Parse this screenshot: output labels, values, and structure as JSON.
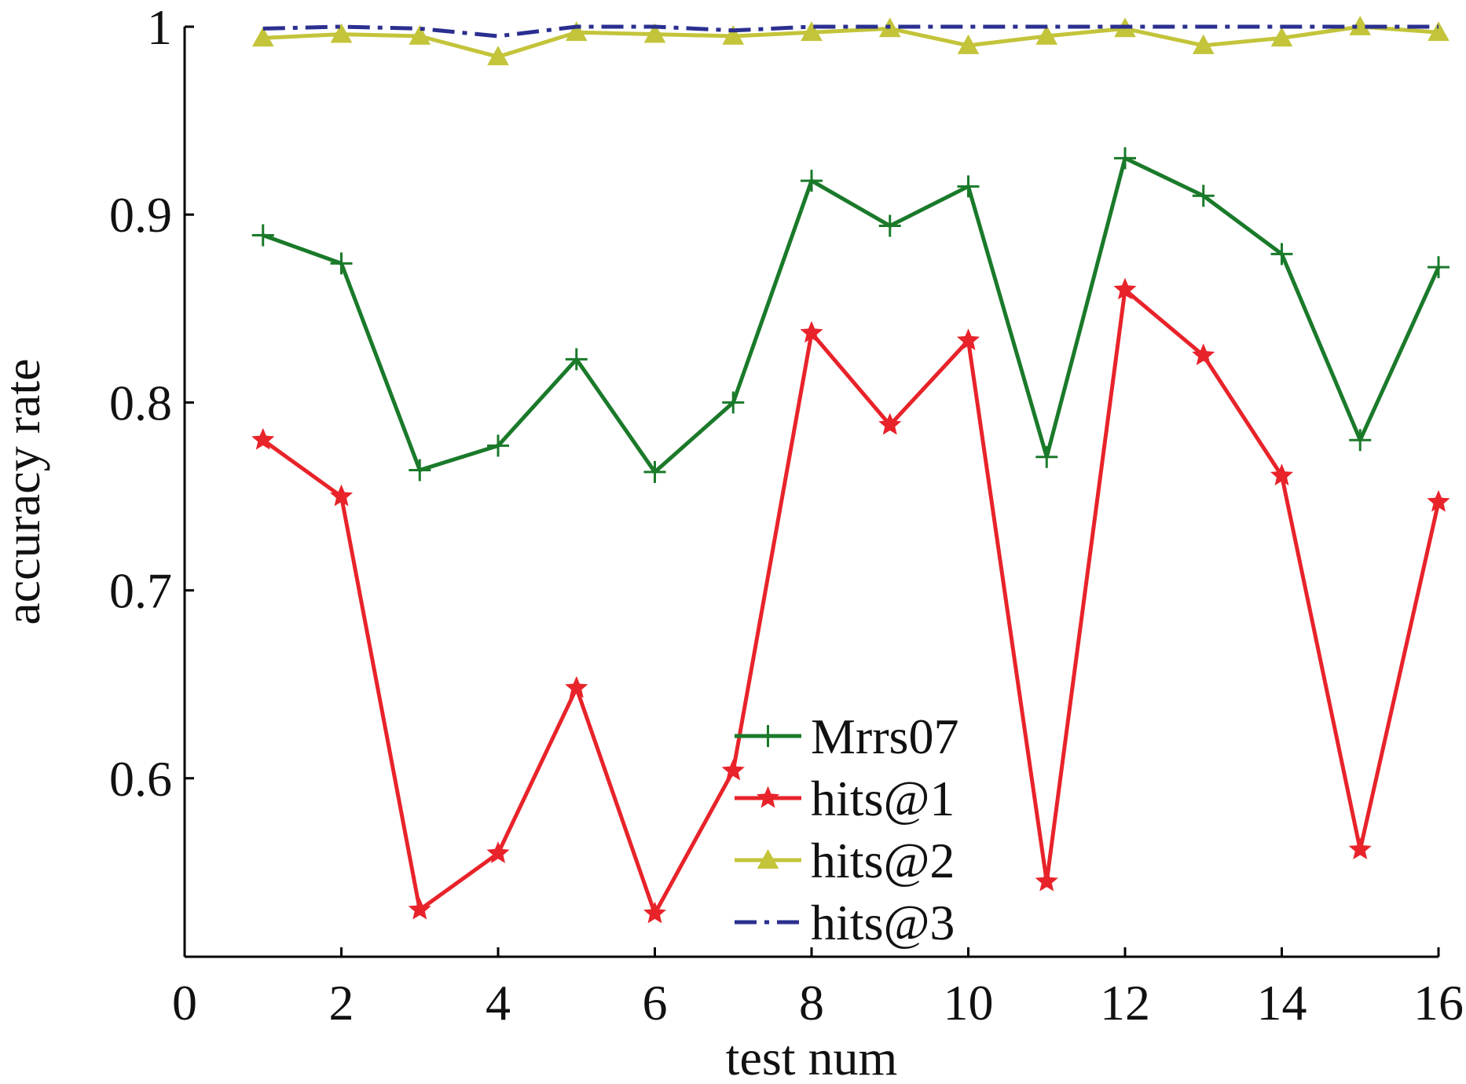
{
  "chart_data": {
    "type": "line",
    "xlabel": "test num",
    "ylabel": "accuracy rate",
    "xlim": [
      0,
      16
    ],
    "ylim": [
      0.505,
      1
    ],
    "xticks": [
      0,
      2,
      4,
      6,
      8,
      10,
      12,
      14,
      16
    ],
    "yticks": [
      0.6,
      0.7,
      0.8,
      0.9,
      1
    ],
    "ytick_labels": [
      "0.6",
      "0.7",
      "0.8",
      "0.9",
      "1"
    ],
    "grid": false,
    "legend_position": "bottom-right",
    "x": [
      1,
      2,
      3,
      4,
      5,
      6,
      7,
      8,
      9,
      10,
      11,
      12,
      13,
      14,
      15,
      16
    ],
    "series": [
      {
        "name": "Mrrs07",
        "color": "#1a7a2a",
        "marker": "plus",
        "line_style": "solid",
        "values": [
          0.889,
          0.874,
          0.764,
          0.777,
          0.823,
          0.763,
          0.8,
          0.918,
          0.894,
          0.915,
          0.771,
          0.93,
          0.91,
          0.879,
          0.78,
          0.872
        ]
      },
      {
        "name": "hits@1",
        "color": "#e8232a",
        "marker": "star",
        "line_style": "solid",
        "values": [
          0.78,
          0.75,
          0.53,
          0.56,
          0.648,
          0.528,
          0.604,
          0.837,
          0.788,
          0.833,
          0.545,
          0.86,
          0.825,
          0.761,
          0.562,
          0.747
        ]
      },
      {
        "name": "hits@2",
        "color": "#c3c43a",
        "marker": "triangle",
        "line_style": "solid",
        "values": [
          0.994,
          0.996,
          0.995,
          0.984,
          0.997,
          0.996,
          0.995,
          0.997,
          0.999,
          0.99,
          0.995,
          0.999,
          0.99,
          0.994,
          1.0,
          0.997
        ]
      },
      {
        "name": "hits@3",
        "color": "#2a2f8f",
        "marker": "none",
        "line_style": "dashdot",
        "values": [
          0.999,
          1.0,
          0.999,
          0.995,
          1.0,
          1.0,
          0.998,
          1.0,
          1.0,
          1.0,
          1.0,
          1.0,
          1.0,
          1.0,
          1.0,
          1.0
        ]
      }
    ]
  }
}
